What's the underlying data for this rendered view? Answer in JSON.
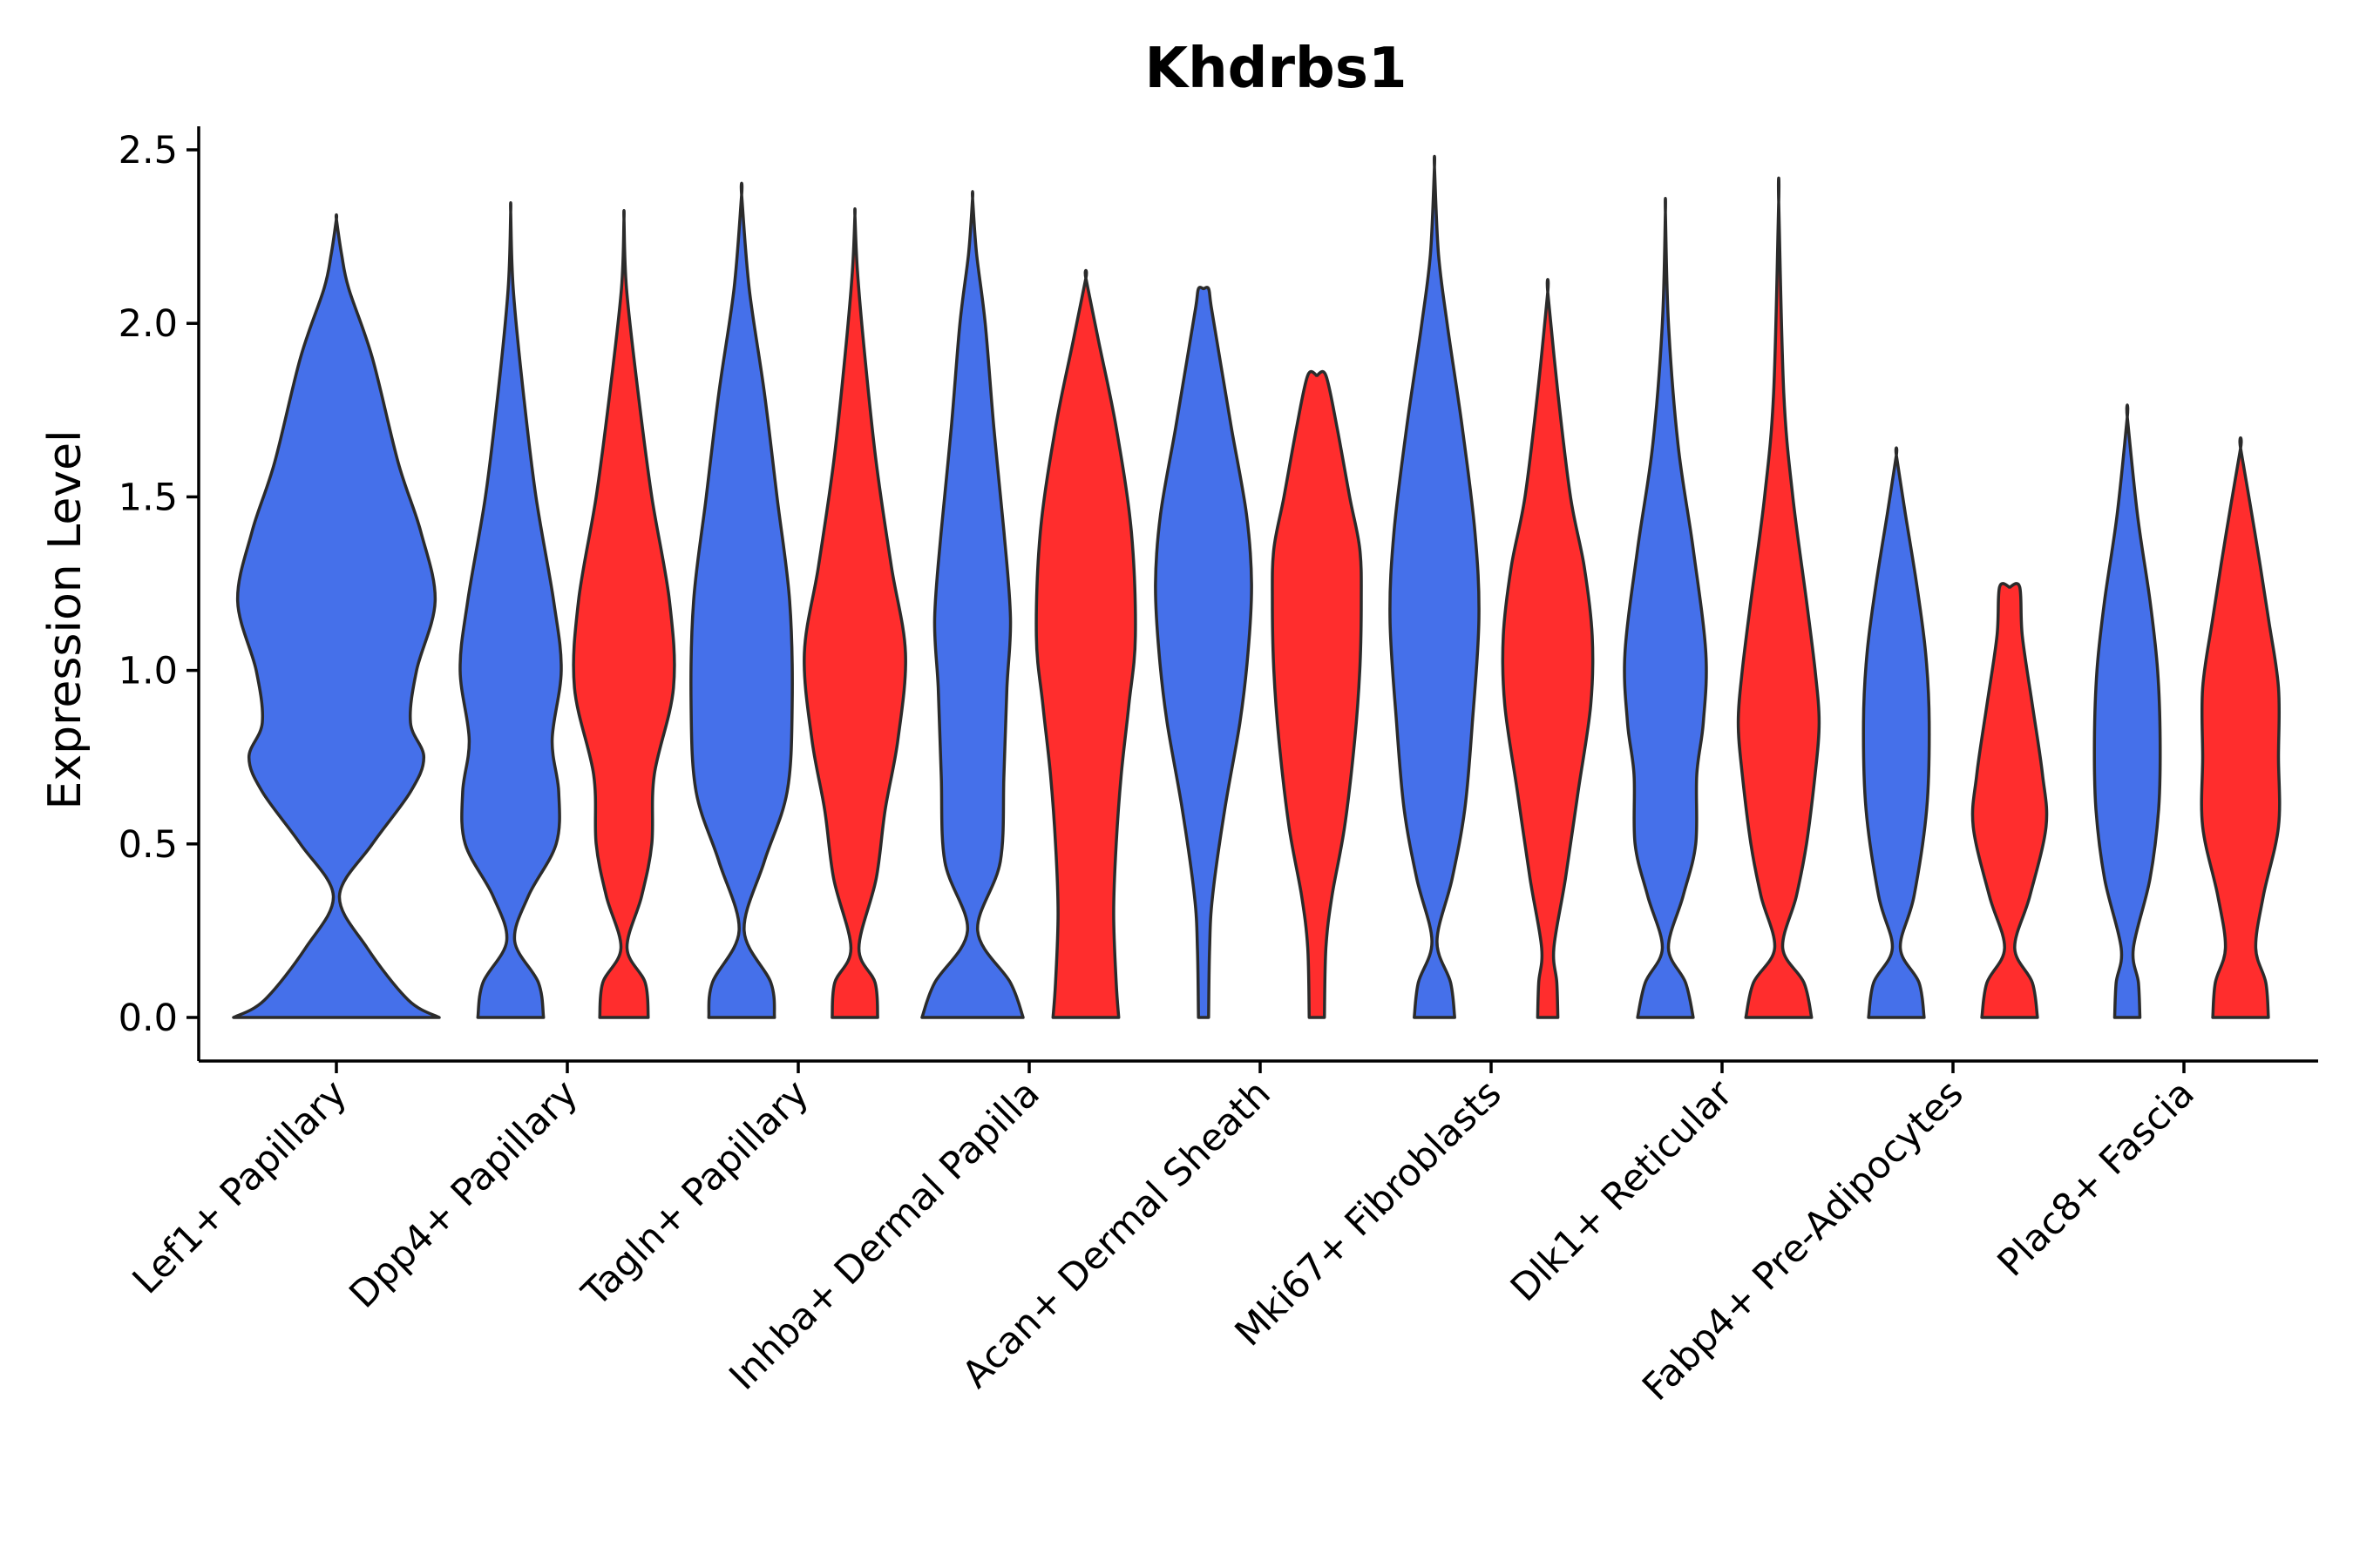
{
  "chart_data": {
    "type": "violin",
    "title": "Khdrbs1",
    "xlabel": "",
    "ylabel": "Expression Level",
    "ylim": [
      -0.12,
      2.6
    ],
    "yticks": [
      "0.0",
      "0.5",
      "1.0",
      "1.5",
      "2.0",
      "2.5"
    ],
    "categories": [
      "Lef1+ Papillary",
      "Dpp4+ Papillary",
      "Tagln+ Papillary",
      "Inhba+ Dermal Papilla",
      "Acan+ Dermal Sheath",
      "Mki67+ Fibroblasts",
      "Dlk1+ Reticular",
      "Fabp4+ Pre-Adipocytes",
      "Plac8+ Fascia"
    ],
    "series": [
      {
        "name": "group-blue",
        "color": "#4570ea",
        "violins": [
          {
            "category": "Lef1+ Papillary",
            "max": 2.3,
            "profile": [
              [
                0.0,
                1.0
              ],
              [
                0.05,
                0.7
              ],
              [
                0.2,
                0.3
              ],
              [
                0.35,
                0.03
              ],
              [
                0.5,
                0.35
              ],
              [
                0.65,
                0.72
              ],
              [
                0.75,
                0.85
              ],
              [
                0.85,
                0.72
              ],
              [
                1.0,
                0.78
              ],
              [
                1.2,
                0.96
              ],
              [
                1.4,
                0.82
              ],
              [
                1.6,
                0.6
              ],
              [
                1.9,
                0.35
              ],
              [
                2.1,
                0.12
              ],
              [
                2.2,
                0.05
              ],
              [
                2.3,
                0.0
              ]
            ]
          },
          {
            "category": "Dpp4+ Papillary",
            "max": 2.32,
            "profile": [
              [
                0.0,
                0.65
              ],
              [
                0.1,
                0.55
              ],
              [
                0.22,
                0.08
              ],
              [
                0.35,
                0.35
              ],
              [
                0.5,
                0.9
              ],
              [
                0.65,
                0.95
              ],
              [
                0.8,
                0.82
              ],
              [
                1.0,
                1.0
              ],
              [
                1.2,
                0.85
              ],
              [
                1.5,
                0.5
              ],
              [
                1.8,
                0.25
              ],
              [
                2.1,
                0.05
              ],
              [
                2.32,
                0.0
              ]
            ]
          },
          {
            "category": "Tagln+ Papillary",
            "max": 2.37,
            "profile": [
              [
                0.0,
                0.65
              ],
              [
                0.1,
                0.58
              ],
              [
                0.25,
                0.05
              ],
              [
                0.45,
                0.45
              ],
              [
                0.65,
                0.9
              ],
              [
                0.9,
                1.0
              ],
              [
                1.2,
                0.95
              ],
              [
                1.5,
                0.7
              ],
              [
                1.8,
                0.45
              ],
              [
                2.1,
                0.15
              ],
              [
                2.37,
                0.0
              ]
            ]
          },
          {
            "category": "Inhba+ Dermal Papilla",
            "max": 2.36,
            "profile": [
              [
                0.0,
                1.0
              ],
              [
                0.1,
                0.75
              ],
              [
                0.25,
                0.1
              ],
              [
                0.45,
                0.55
              ],
              [
                0.7,
                0.62
              ],
              [
                0.95,
                0.68
              ],
              [
                1.15,
                0.75
              ],
              [
                1.4,
                0.62
              ],
              [
                1.7,
                0.42
              ],
              [
                2.0,
                0.25
              ],
              [
                2.2,
                0.08
              ],
              [
                2.36,
                0.0
              ]
            ]
          },
          {
            "category": "Acan+ Dermal Sheath",
            "max": 2.1,
            "profile": [
              [
                0.0,
                0.1
              ],
              [
                0.2,
                0.12
              ],
              [
                0.35,
                0.18
              ],
              [
                0.6,
                0.42
              ],
              [
                0.85,
                0.72
              ],
              [
                1.05,
                0.88
              ],
              [
                1.25,
                0.95
              ],
              [
                1.45,
                0.85
              ],
              [
                1.7,
                0.55
              ],
              [
                1.9,
                0.32
              ],
              [
                2.05,
                0.15
              ],
              [
                2.1,
                0.1
              ],
              [
                2.1,
                0.0
              ]
            ]
          },
          {
            "category": "Mki67+ Fibroblasts",
            "max": 2.45,
            "profile": [
              [
                0.0,
                0.4
              ],
              [
                0.1,
                0.32
              ],
              [
                0.22,
                0.05
              ],
              [
                0.4,
                0.35
              ],
              [
                0.6,
                0.6
              ],
              [
                0.85,
                0.75
              ],
              [
                1.15,
                0.88
              ],
              [
                1.4,
                0.8
              ],
              [
                1.7,
                0.55
              ],
              [
                2.0,
                0.25
              ],
              [
                2.2,
                0.08
              ],
              [
                2.45,
                0.0
              ]
            ]
          },
          {
            "category": "Dlk1+ Reticular",
            "max": 2.32,
            "profile": [
              [
                0.0,
                0.55
              ],
              [
                0.1,
                0.4
              ],
              [
                0.2,
                0.06
              ],
              [
                0.35,
                0.35
              ],
              [
                0.5,
                0.6
              ],
              [
                0.7,
                0.62
              ],
              [
                0.85,
                0.75
              ],
              [
                1.05,
                0.8
              ],
              [
                1.35,
                0.55
              ],
              [
                1.65,
                0.25
              ],
              [
                2.0,
                0.06
              ],
              [
                2.32,
                0.0
              ]
            ]
          },
          {
            "category": "Fabp4+ Pre-Adipocytes",
            "max": 1.62,
            "profile": [
              [
                0.0,
                0.55
              ],
              [
                0.1,
                0.45
              ],
              [
                0.2,
                0.08
              ],
              [
                0.35,
                0.35
              ],
              [
                0.6,
                0.6
              ],
              [
                0.85,
                0.65
              ],
              [
                1.05,
                0.58
              ],
              [
                1.25,
                0.4
              ],
              [
                1.45,
                0.18
              ],
              [
                1.62,
                0.0
              ]
            ]
          },
          {
            "category": "Plac8+ Fascia",
            "max": 1.73,
            "profile": [
              [
                0.0,
                0.25
              ],
              [
                0.1,
                0.22
              ],
              [
                0.2,
                0.12
              ],
              [
                0.4,
                0.45
              ],
              [
                0.6,
                0.62
              ],
              [
                0.8,
                0.65
              ],
              [
                1.0,
                0.6
              ],
              [
                1.2,
                0.45
              ],
              [
                1.45,
                0.2
              ],
              [
                1.73,
                0.0
              ]
            ]
          }
        ]
      },
      {
        "name": "group-red",
        "color": "#ff2d2d",
        "violins": [
          {
            "category": "Dpp4+ Papillary",
            "max": 2.3,
            "profile": [
              [
                0.0,
                0.48
              ],
              [
                0.1,
                0.42
              ],
              [
                0.2,
                0.06
              ],
              [
                0.35,
                0.35
              ],
              [
                0.5,
                0.55
              ],
              [
                0.7,
                0.6
              ],
              [
                0.95,
                0.98
              ],
              [
                1.2,
                0.9
              ],
              [
                1.5,
                0.55
              ],
              [
                1.8,
                0.28
              ],
              [
                2.1,
                0.05
              ],
              [
                2.3,
                0.0
              ]
            ]
          },
          {
            "category": "Tagln+ Papillary",
            "max": 2.31,
            "profile": [
              [
                0.0,
                0.45
              ],
              [
                0.1,
                0.4
              ],
              [
                0.2,
                0.08
              ],
              [
                0.4,
                0.42
              ],
              [
                0.6,
                0.6
              ],
              [
                0.8,
                0.85
              ],
              [
                1.05,
                1.0
              ],
              [
                1.3,
                0.72
              ],
              [
                1.6,
                0.42
              ],
              [
                1.9,
                0.2
              ],
              [
                2.15,
                0.05
              ],
              [
                2.31,
                0.0
              ]
            ]
          },
          {
            "category": "Inhba+ Dermal Papilla",
            "max": 2.13,
            "profile": [
              [
                0.0,
                0.65
              ],
              [
                0.1,
                0.6
              ],
              [
                0.3,
                0.55
              ],
              [
                0.5,
                0.6
              ],
              [
                0.7,
                0.7
              ],
              [
                0.9,
                0.85
              ],
              [
                1.1,
                0.98
              ],
              [
                1.4,
                0.9
              ],
              [
                1.7,
                0.6
              ],
              [
                1.95,
                0.25
              ],
              [
                2.13,
                0.0
              ]
            ]
          },
          {
            "category": "Acan+ Dermal Sheath",
            "max": 1.85,
            "profile": [
              [
                0.0,
                0.15
              ],
              [
                0.2,
                0.18
              ],
              [
                0.35,
                0.3
              ],
              [
                0.55,
                0.55
              ],
              [
                0.8,
                0.75
              ],
              [
                1.0,
                0.85
              ],
              [
                1.2,
                0.88
              ],
              [
                1.35,
                0.85
              ],
              [
                1.5,
                0.65
              ],
              [
                1.7,
                0.4
              ],
              [
                1.85,
                0.18
              ],
              [
                1.85,
                0.0
              ]
            ]
          },
          {
            "category": "Mki67+ Fibroblasts",
            "max": 2.09,
            "profile": [
              [
                0.0,
                0.2
              ],
              [
                0.1,
                0.18
              ],
              [
                0.2,
                0.12
              ],
              [
                0.4,
                0.35
              ],
              [
                0.65,
                0.6
              ],
              [
                0.9,
                0.85
              ],
              [
                1.1,
                0.88
              ],
              [
                1.3,
                0.72
              ],
              [
                1.5,
                0.45
              ],
              [
                1.8,
                0.2
              ],
              [
                2.09,
                0.0
              ]
            ]
          },
          {
            "category": "Dlk1+ Reticular",
            "max": 2.35,
            "profile": [
              [
                0.0,
                0.65
              ],
              [
                0.1,
                0.5
              ],
              [
                0.2,
                0.08
              ],
              [
                0.35,
                0.35
              ],
              [
                0.5,
                0.55
              ],
              [
                0.7,
                0.72
              ],
              [
                0.85,
                0.8
              ],
              [
                1.0,
                0.72
              ],
              [
                1.2,
                0.55
              ],
              [
                1.5,
                0.28
              ],
              [
                1.8,
                0.1
              ],
              [
                2.35,
                0.0
              ]
            ]
          },
          {
            "category": "Fabp4+ Pre-Adipocytes",
            "max": 1.24,
            "profile": [
              [
                0.0,
                0.55
              ],
              [
                0.1,
                0.45
              ],
              [
                0.2,
                0.1
              ],
              [
                0.35,
                0.4
              ],
              [
                0.55,
                0.72
              ],
              [
                0.7,
                0.65
              ],
              [
                0.9,
                0.45
              ],
              [
                1.1,
                0.25
              ],
              [
                1.24,
                0.2
              ],
              [
                1.24,
                0.0
              ]
            ]
          },
          {
            "category": "Plac8+ Fascia",
            "max": 1.64,
            "profile": [
              [
                0.0,
                0.55
              ],
              [
                0.1,
                0.5
              ],
              [
                0.2,
                0.3
              ],
              [
                0.35,
                0.45
              ],
              [
                0.55,
                0.75
              ],
              [
                0.75,
                0.75
              ],
              [
                0.95,
                0.75
              ],
              [
                1.15,
                0.55
              ],
              [
                1.4,
                0.28
              ],
              [
                1.64,
                0.0
              ]
            ]
          }
        ]
      }
    ]
  }
}
